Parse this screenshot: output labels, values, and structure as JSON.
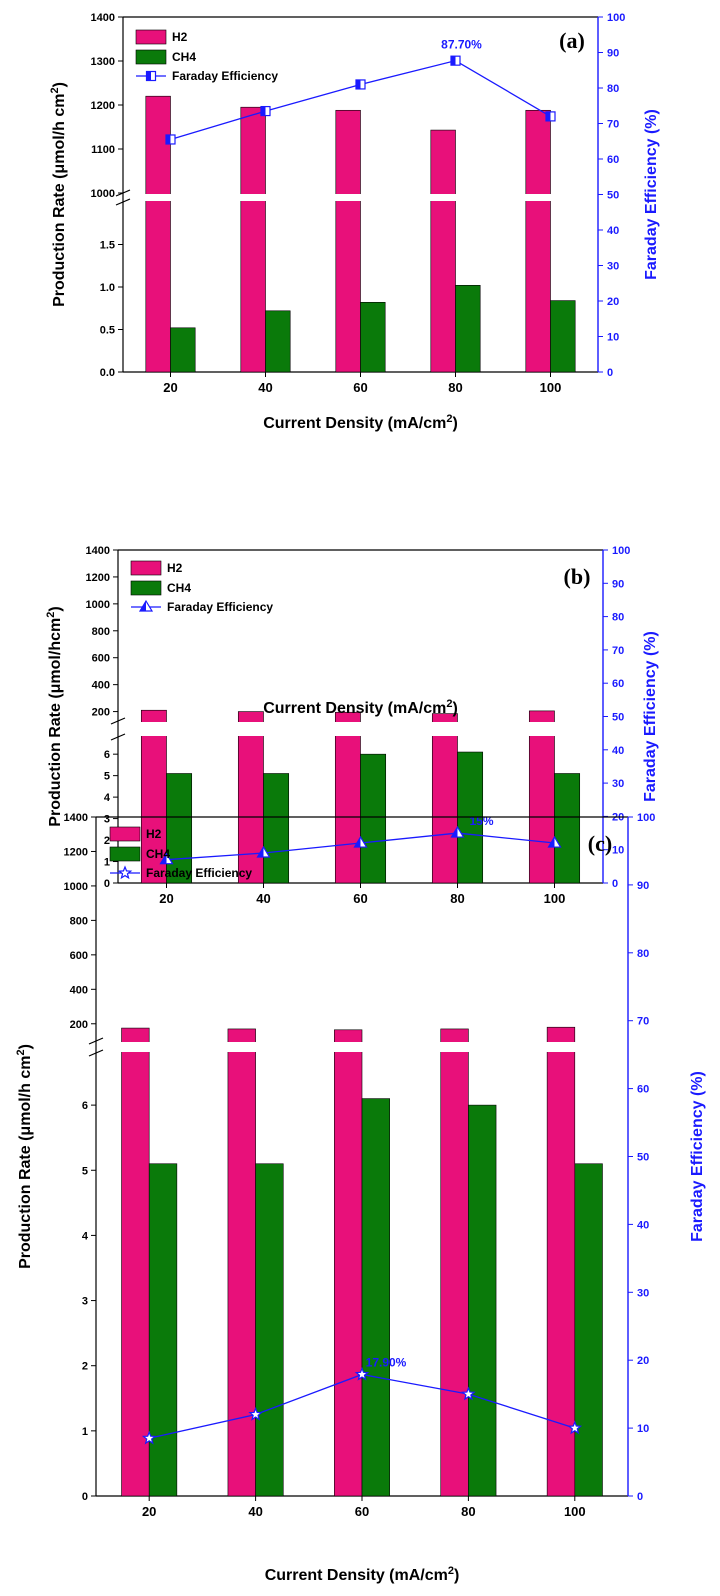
{
  "chart_data": [
    {
      "type": "bar",
      "panel": "(a)",
      "categories": [
        "20",
        "40",
        "60",
        "80",
        "100"
      ],
      "xlabel": "Current Density (mA/cm",
      "xlabel_sup": "2",
      "xlabel_end": ")",
      "ylabel": "Production Rate (μmol/h cm",
      "ylabel_sup": "2",
      "ylabel_end": ")",
      "y2label": "Faraday Efficiency (%)",
      "y_upper": {
        "ticks": [
          "1000",
          "1100",
          "1200",
          "1300",
          "1400"
        ],
        "ylim": [
          1000,
          1400
        ]
      },
      "y_lower": {
        "ticks": [
          "0.0",
          "0.5",
          "1.0",
          "1.5"
        ],
        "ylim": [
          0,
          2.0
        ]
      },
      "y2": {
        "ticks": [
          "0",
          "10",
          "20",
          "30",
          "40",
          "50",
          "60",
          "70",
          "80",
          "90",
          "100"
        ],
        "ylim": [
          0,
          100
        ]
      },
      "series": [
        {
          "name": "H2",
          "color": "#e8107a",
          "axis": "upper",
          "values": [
            1220,
            1195,
            1188,
            1143,
            1188
          ]
        },
        {
          "name": "CH4",
          "color": "#0a7a0a",
          "axis": "lower",
          "values": [
            0.52,
            0.72,
            0.82,
            1.02,
            0.84
          ]
        },
        {
          "name": "Faraday Efficiency",
          "color": "#1a1aff",
          "axis": "right",
          "marker": "half-square",
          "values": [
            65.5,
            73.5,
            81,
            87.7,
            72
          ]
        }
      ],
      "annotation": {
        "text": "87.70%",
        "index": 3
      },
      "legend": "top-left"
    },
    {
      "type": "bar",
      "panel": "(b)",
      "categories": [
        "20",
        "40",
        "60",
        "80",
        "100"
      ],
      "xlabel": "Current Density (mA/cm",
      "xlabel_sup": "2",
      "xlabel_end": ")",
      "ylabel": "Production Rate (μmol/hcm",
      "ylabel_sup": "2",
      "ylabel_end": ")",
      "y2label": "Faraday Efficiency (%)",
      "y_upper": {
        "ticks": [
          "200",
          "400",
          "600",
          "800",
          "1000",
          "1200",
          "1400"
        ],
        "ylim": [
          130,
          1400
        ]
      },
      "y_lower": {
        "ticks": [
          "0",
          "1",
          "2",
          "3",
          "4",
          "5",
          "6"
        ],
        "ylim": [
          0,
          6.8
        ]
      },
      "y2": {
        "ticks": [
          "0",
          "10",
          "20",
          "30",
          "40",
          "50",
          "60",
          "70",
          "80",
          "90",
          "100"
        ],
        "ylim": [
          0,
          100
        ]
      },
      "series": [
        {
          "name": "H2",
          "color": "#e8107a",
          "axis": "upper",
          "values": [
            210,
            200,
            195,
            185,
            205
          ]
        },
        {
          "name": "CH4",
          "color": "#0a7a0a",
          "axis": "lower",
          "values": [
            5.1,
            5.1,
            6.0,
            6.1,
            5.1
          ]
        },
        {
          "name": "Faraday Efficiency",
          "color": "#1a1aff",
          "axis": "right",
          "marker": "half-triangle",
          "values": [
            7,
            9,
            12,
            15,
            12
          ]
        }
      ],
      "annotation": {
        "text": "15%",
        "index": 3
      },
      "legend": "top-left"
    },
    {
      "type": "bar",
      "panel": "(c)",
      "categories": [
        "20",
        "40",
        "60",
        "80",
        "100"
      ],
      "xlabel": "Current Density (mA/cm",
      "xlabel_sup": "2",
      "xlabel_end": ")",
      "ylabel": "Production Rate (μmol/h cm",
      "ylabel_sup": "2",
      "ylabel_end": ")",
      "y2label": "Faraday Efficiency (%)",
      "y_upper": {
        "ticks": [
          "200",
          "400",
          "600",
          "800",
          "1000",
          "1200",
          "1400"
        ],
        "ylim": [
          100,
          1400
        ]
      },
      "y_lower": {
        "ticks": [
          "0",
          "1",
          "2",
          "3",
          "4",
          "5",
          "6"
        ],
        "ylim": [
          0,
          6.8
        ]
      },
      "y2": {
        "ticks": [
          "0",
          "10",
          "20",
          "30",
          "40",
          "50",
          "60",
          "70",
          "80",
          "90",
          "100"
        ],
        "ylim": [
          0,
          100
        ]
      },
      "series": [
        {
          "name": "H2",
          "color": "#e8107a",
          "axis": "upper",
          "values": [
            175,
            170,
            165,
            170,
            180
          ]
        },
        {
          "name": "CH4",
          "color": "#0a7a0a",
          "axis": "lower",
          "values": [
            5.1,
            5.1,
            6.1,
            6.0,
            5.1
          ]
        },
        {
          "name": "Faraday Efficiency",
          "color": "#1a1aff",
          "axis": "right",
          "marker": "star",
          "values": [
            8.5,
            12,
            17.9,
            15,
            10
          ]
        }
      ],
      "annotation": {
        "text": "17.90%",
        "index": 2
      },
      "legend": "top-left"
    }
  ]
}
